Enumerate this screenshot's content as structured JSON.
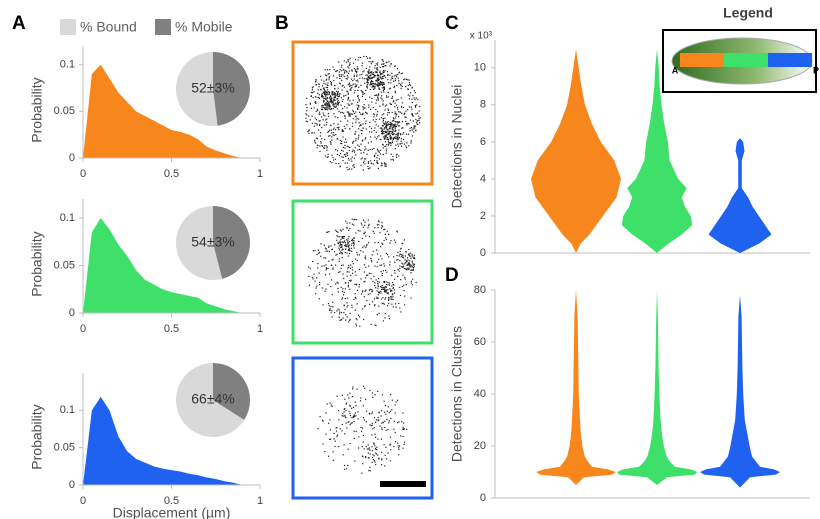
{
  "panel_labels": [
    "A",
    "B",
    "C",
    "D"
  ],
  "pie_legend": {
    "categories": [
      "% Bound",
      "% Mobile"
    ],
    "colors": [
      "#d9d9d9",
      "#808080"
    ]
  },
  "chart_data": [
    {
      "type": "area",
      "ylabel": "Probability",
      "color": "#f7861d",
      "x": [
        0,
        0.05,
        0.1,
        0.15,
        0.2,
        0.25,
        0.3,
        0.35,
        0.4,
        0.45,
        0.5,
        0.55,
        0.6,
        0.65,
        0.7,
        0.75,
        0.8,
        0.85,
        0.9,
        1
      ],
      "values": [
        0,
        0.09,
        0.1,
        0.085,
        0.07,
        0.06,
        0.05,
        0.045,
        0.04,
        0.035,
        0.03,
        0.028,
        0.025,
        0.02,
        0.012,
        0.008,
        0.005,
        0.002,
        0,
        0
      ],
      "xlim": [
        0,
        1
      ],
      "xticks": [
        0,
        0.5,
        1
      ],
      "ylim": [
        0,
        0.12
      ],
      "yticks": [
        0,
        0.05,
        0.1
      ]
    },
    {
      "type": "area",
      "ylabel": "Probability",
      "color": "#3ee06a",
      "x": [
        0,
        0.05,
        0.1,
        0.15,
        0.2,
        0.25,
        0.3,
        0.35,
        0.4,
        0.45,
        0.5,
        0.55,
        0.6,
        0.65,
        0.7,
        0.75,
        0.8,
        0.85,
        0.9,
        1
      ],
      "values": [
        0,
        0.085,
        0.1,
        0.088,
        0.072,
        0.06,
        0.045,
        0.035,
        0.03,
        0.025,
        0.022,
        0.02,
        0.018,
        0.016,
        0.01,
        0.007,
        0.004,
        0.002,
        0,
        0
      ],
      "xlim": [
        0,
        1
      ],
      "xticks": [
        0,
        0.5,
        1
      ],
      "ylim": [
        0,
        0.12
      ],
      "yticks": [
        0,
        0.05,
        0.1
      ]
    },
    {
      "type": "area",
      "ylabel": "Probability",
      "xlabel": "Displacement (µm)",
      "color": "#1f62f0",
      "x": [
        0,
        0.05,
        0.1,
        0.15,
        0.2,
        0.25,
        0.3,
        0.35,
        0.4,
        0.45,
        0.5,
        0.55,
        0.6,
        0.65,
        0.7,
        0.75,
        0.8,
        0.85,
        0.9,
        1
      ],
      "values": [
        0,
        0.1,
        0.118,
        0.1,
        0.065,
        0.045,
        0.035,
        0.03,
        0.025,
        0.022,
        0.02,
        0.018,
        0.015,
        0.013,
        0.01,
        0.008,
        0.005,
        0.003,
        0,
        0
      ],
      "xlim": [
        0,
        1
      ],
      "xticks": [
        0,
        0.5,
        1
      ],
      "ylim": [
        0,
        0.15
      ],
      "yticks": [
        0,
        0.05,
        0.1
      ]
    },
    {
      "type": "pie",
      "values": [
        52,
        48
      ],
      "value_labels": [
        "52±3%",
        null
      ],
      "colors": [
        "#d9d9d9",
        "#808080"
      ]
    },
    {
      "type": "pie",
      "values": [
        54,
        46
      ],
      "value_labels": [
        "54±3%",
        null
      ],
      "colors": [
        "#d9d9d9",
        "#808080"
      ]
    },
    {
      "type": "pie",
      "values": [
        66,
        34
      ],
      "value_labels": [
        "66±4%",
        null
      ],
      "colors": [
        "#d9d9d9",
        "#808080"
      ]
    },
    {
      "type": "violin",
      "ylabel": "Detections in Nuclei",
      "y_multiplier": "x 10³",
      "ylim": [
        0,
        11.5
      ],
      "yticks": [
        0,
        2,
        4,
        6,
        8,
        10
      ],
      "legend_box": {
        "title": "Legend",
        "labels": [
          "A",
          "P"
        ]
      },
      "series": [
        {
          "color": "#f7861d",
          "y": [
            0,
            0.5,
            1,
            2,
            3,
            4,
            5,
            6,
            7,
            8,
            9,
            10,
            11
          ],
          "width": [
            0,
            0.1,
            0.3,
            0.6,
            0.9,
            1,
            0.85,
            0.55,
            0.35,
            0.2,
            0.12,
            0.06,
            0
          ]
        },
        {
          "color": "#3ee06a",
          "y": [
            0,
            0.5,
            1,
            1.5,
            2,
            2.5,
            3,
            3.5,
            4,
            5,
            6,
            7,
            8,
            9,
            10,
            11
          ],
          "width": [
            0,
            0.25,
            0.55,
            0.78,
            0.75,
            0.62,
            0.55,
            0.66,
            0.47,
            0.28,
            0.24,
            0.16,
            0.1,
            0.06,
            0.04,
            0
          ]
        },
        {
          "color": "#1f62f0",
          "y": [
            0,
            0.5,
            1,
            1.5,
            2,
            2.5,
            3,
            3.5,
            4,
            5,
            5.5,
            6,
            6.2
          ],
          "width": [
            0,
            0.42,
            0.7,
            0.56,
            0.42,
            0.28,
            0.18,
            0.04,
            0.04,
            0.04,
            0.1,
            0.07,
            0
          ]
        }
      ]
    },
    {
      "type": "violin",
      "ylabel": "Detections in Clusters",
      "ylim": [
        0,
        80
      ],
      "yticks": [
        0,
        20,
        40,
        60,
        80
      ],
      "series": [
        {
          "color": "#f7861d",
          "y": [
            5,
            8,
            9,
            10,
            11,
            12,
            14,
            16,
            20,
            25,
            30,
            40,
            50,
            60,
            70,
            80
          ],
          "width": [
            0,
            0.2,
            0.9,
            1,
            0.8,
            0.4,
            0.3,
            0.22,
            0.16,
            0.12,
            0.1,
            0.07,
            0.06,
            0.05,
            0.04,
            0
          ]
        },
        {
          "color": "#3ee06a",
          "y": [
            5,
            8,
            9,
            10,
            11,
            12,
            14,
            16,
            20,
            25,
            30,
            40,
            50,
            60,
            70,
            80
          ],
          "width": [
            0,
            0.25,
            0.95,
            1,
            0.85,
            0.45,
            0.32,
            0.24,
            0.17,
            0.12,
            0.09,
            0.06,
            0.04,
            0.03,
            0.02,
            0
          ]
        },
        {
          "color": "#1f62f0",
          "y": [
            4,
            8,
            9,
            10,
            11,
            12,
            14,
            16,
            20,
            25,
            30,
            40,
            50,
            60,
            70,
            78
          ],
          "width": [
            0,
            0.25,
            0.9,
            1,
            0.85,
            0.5,
            0.4,
            0.3,
            0.24,
            0.18,
            0.12,
            0.08,
            0.06,
            0.05,
            0.04,
            0
          ]
        }
      ]
    }
  ]
}
